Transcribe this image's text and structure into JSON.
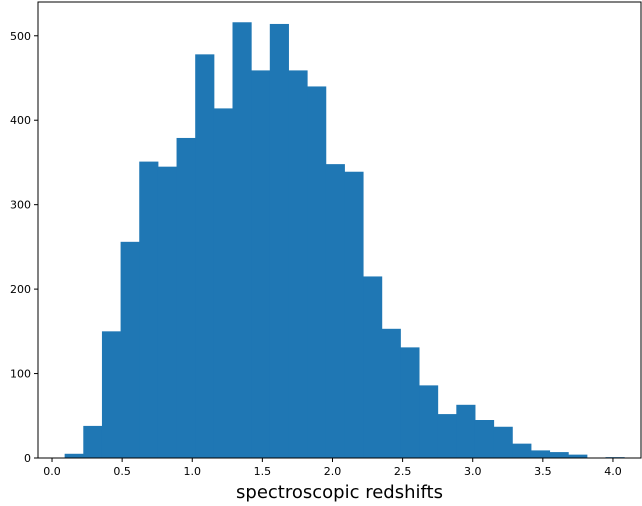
{
  "chart_data": {
    "type": "bar",
    "title": "",
    "xlabel": "spectroscopic redshifts",
    "ylabel": "",
    "xlim": [
      -0.1,
      4.2
    ],
    "ylim": [
      0,
      540
    ],
    "grid": false,
    "bar_color": "#1f77b4",
    "bin_edges": [
      0.09,
      0.223,
      0.356,
      0.489,
      0.622,
      0.755,
      0.888,
      1.021,
      1.154,
      1.287,
      1.42,
      1.553,
      1.686,
      1.819,
      1.952,
      2.085,
      2.218,
      2.351,
      2.484,
      2.617,
      2.75,
      2.883,
      3.016,
      3.149,
      3.282,
      3.415,
      3.548,
      3.681,
      3.814,
      3.947,
      4.08
    ],
    "counts": [
      5,
      38,
      150,
      256,
      351,
      345,
      379,
      478,
      414,
      516,
      459,
      514,
      459,
      440,
      348,
      339,
      215,
      153,
      131,
      86,
      52,
      63,
      45,
      37,
      17,
      9,
      7,
      4,
      0,
      1
    ],
    "x_ticks": [
      {
        "value": 0.0,
        "label": "0.0"
      },
      {
        "value": 0.5,
        "label": "0.5"
      },
      {
        "value": 1.0,
        "label": "1.0"
      },
      {
        "value": 1.5,
        "label": "1.5"
      },
      {
        "value": 2.0,
        "label": "2.0"
      },
      {
        "value": 2.5,
        "label": "2.5"
      },
      {
        "value": 3.0,
        "label": "3.0"
      },
      {
        "value": 3.5,
        "label": "3.5"
      },
      {
        "value": 4.0,
        "label": "4.0"
      }
    ],
    "y_ticks": [
      {
        "value": 0,
        "label": "0"
      },
      {
        "value": 100,
        "label": "100"
      },
      {
        "value": 200,
        "label": "200"
      },
      {
        "value": 300,
        "label": "300"
      },
      {
        "value": 400,
        "label": "400"
      },
      {
        "value": 500,
        "label": "500"
      }
    ]
  }
}
